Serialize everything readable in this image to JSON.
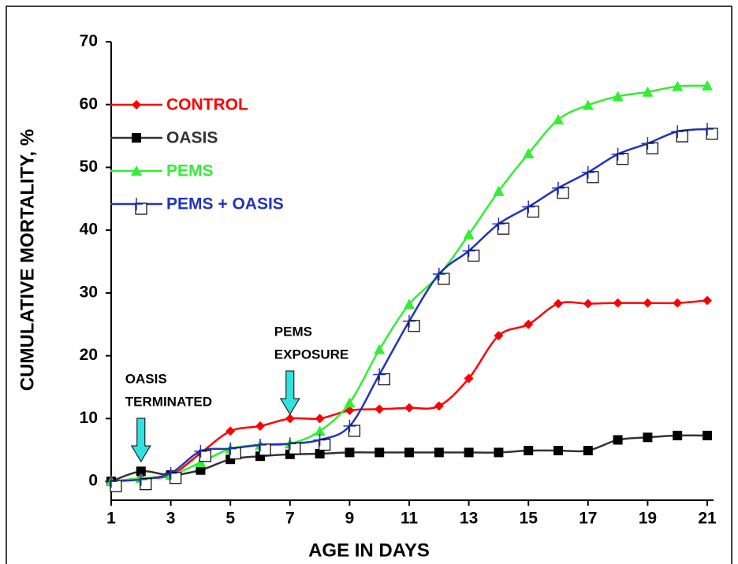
{
  "chart_data": {
    "type": "line",
    "x_label": "AGE IN DAYS",
    "y_label": "CUMULATIVE MORTALITY, %",
    "x": [
      1,
      2,
      3,
      4,
      5,
      6,
      7,
      8,
      9,
      10,
      11,
      12,
      13,
      14,
      15,
      16,
      17,
      18,
      19,
      20,
      21
    ],
    "xlim": [
      1,
      21
    ],
    "xticks": [
      1,
      3,
      5,
      7,
      9,
      11,
      13,
      15,
      17,
      19,
      21
    ],
    "ylim": [
      -3,
      70
    ],
    "yticks": [
      0,
      10,
      20,
      30,
      40,
      50,
      60,
      70
    ],
    "legend": "upper left",
    "series": [
      {
        "name": "CONTROL",
        "color": "#ff0000",
        "marker": "diamond",
        "values": [
          0,
          0.5,
          1,
          4.5,
          8,
          8.8,
          10,
          10,
          11.3,
          11.5,
          11.7,
          12,
          16.4,
          23.2,
          25,
          28.3,
          28.3,
          28.4,
          28.4,
          28.4,
          28.8
        ]
      },
      {
        "name": "OASIS",
        "color": "#333333",
        "marker": "square",
        "values": [
          0,
          1.6,
          1,
          1.8,
          3.5,
          4,
          4.3,
          4.4,
          4.6,
          4.6,
          4.6,
          4.6,
          4.6,
          4.6,
          4.9,
          4.9,
          4.9,
          6.6,
          7,
          7.3,
          7.3
        ]
      },
      {
        "name": "PEMS",
        "color": "#33ee33",
        "marker": "triangle",
        "values": [
          0,
          0.5,
          1,
          3,
          5.2,
          5.8,
          6,
          8,
          12.5,
          21,
          28.2,
          32.8,
          39.3,
          46.2,
          52.2,
          57.6,
          59.9,
          61.3,
          62,
          62.9,
          63
        ]
      },
      {
        "name": "PEMS + OASIS",
        "color": "#2233bb",
        "marker": "plus",
        "values": [
          0,
          0.3,
          1.3,
          4.8,
          5.2,
          5.8,
          6,
          6.6,
          8.8,
          17,
          25.5,
          33,
          36.7,
          41,
          43.7,
          46.7,
          49.2,
          52.1,
          53.8,
          55.7,
          56.1
        ]
      }
    ],
    "annotations": [
      {
        "lines": [
          "OASIS",
          "TERMINATED"
        ],
        "x": 2
      },
      {
        "lines": [
          "PEMS",
          "EXPOSURE"
        ],
        "x": 7
      }
    ]
  }
}
